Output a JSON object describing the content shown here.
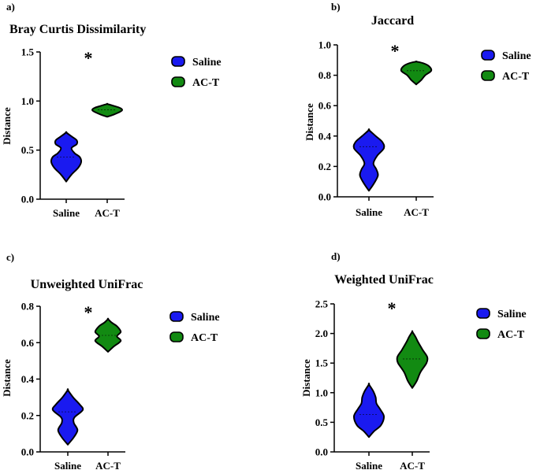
{
  "colors": {
    "saline": "#1a1af0",
    "act": "#128a12",
    "outline": "#000000"
  },
  "chart_data": [
    {
      "panel_label": "a)",
      "type": "violin",
      "title": "Bray Curtis Dissimilarity",
      "ylabel": "Distance",
      "xlabel": "",
      "categories": [
        "Saline",
        "AC-T"
      ],
      "ylim": [
        0,
        1.5
      ],
      "yticks": [
        "0.0",
        "0.5",
        "1.0",
        "1.5"
      ],
      "legend": [
        "Saline",
        "AC-T"
      ],
      "significance": "*",
      "series": [
        {
          "name": "Saline",
          "min": 0.18,
          "max": 0.68,
          "median": 0.43,
          "profile": [
            [
              0.18,
              0
            ],
            [
              0.25,
              0.35
            ],
            [
              0.32,
              0.8
            ],
            [
              0.38,
              1
            ],
            [
              0.43,
              0.9
            ],
            [
              0.47,
              0.55
            ],
            [
              0.52,
              0.35
            ],
            [
              0.56,
              0.7
            ],
            [
              0.6,
              0.7
            ],
            [
              0.64,
              0.35
            ],
            [
              0.68,
              0
            ]
          ]
        },
        {
          "name": "AC-T",
          "min": 0.84,
          "max": 0.97,
          "median": 0.91,
          "profile": [
            [
              0.84,
              0
            ],
            [
              0.86,
              0.4
            ],
            [
              0.89,
              0.85
            ],
            [
              0.91,
              1
            ],
            [
              0.93,
              0.85
            ],
            [
              0.95,
              0.45
            ],
            [
              0.97,
              0
            ]
          ]
        }
      ]
    },
    {
      "panel_label": "b)",
      "type": "violin",
      "title": "Jaccard",
      "ylabel": "Distance",
      "xlabel": "",
      "categories": [
        "Saline",
        "AC-T"
      ],
      "ylim": [
        0,
        1.0
      ],
      "yticks": [
        "0.0",
        "0.2",
        "0.4",
        "0.6",
        "0.8",
        "1.0"
      ],
      "legend": [
        "Saline",
        "AC-T"
      ],
      "significance": "*",
      "series": [
        {
          "name": "Saline",
          "min": 0.04,
          "max": 0.44,
          "median": 0.33,
          "profile": [
            [
              0.04,
              0
            ],
            [
              0.09,
              0.35
            ],
            [
              0.14,
              0.6
            ],
            [
              0.18,
              0.5
            ],
            [
              0.22,
              0.3
            ],
            [
              0.27,
              0.55
            ],
            [
              0.32,
              1
            ],
            [
              0.36,
              0.9
            ],
            [
              0.4,
              0.45
            ],
            [
              0.44,
              0
            ]
          ]
        },
        {
          "name": "AC-T",
          "min": 0.74,
          "max": 0.89,
          "median": 0.83,
          "profile": [
            [
              0.74,
              0
            ],
            [
              0.77,
              0.35
            ],
            [
              0.8,
              0.6
            ],
            [
              0.83,
              1
            ],
            [
              0.86,
              0.85
            ],
            [
              0.88,
              0.45
            ],
            [
              0.89,
              0
            ]
          ]
        }
      ]
    },
    {
      "panel_label": "c)",
      "type": "violin",
      "title": "Unweighted UniFrac",
      "ylabel": "Distance",
      "xlabel": "",
      "categories": [
        "Saline",
        "AC-T"
      ],
      "ylim": [
        0,
        0.8
      ],
      "yticks": [
        "0.0",
        "0.2",
        "0.4",
        "0.6",
        "0.8"
      ],
      "legend": [
        "Saline",
        "AC-T"
      ],
      "significance": "*",
      "series": [
        {
          "name": "Saline",
          "min": 0.04,
          "max": 0.34,
          "median": 0.22,
          "profile": [
            [
              0.04,
              0
            ],
            [
              0.08,
              0.4
            ],
            [
              0.12,
              0.65
            ],
            [
              0.16,
              0.4
            ],
            [
              0.19,
              0.45
            ],
            [
              0.23,
              1
            ],
            [
              0.26,
              0.8
            ],
            [
              0.3,
              0.35
            ],
            [
              0.34,
              0
            ]
          ]
        },
        {
          "name": "AC-T",
          "min": 0.55,
          "max": 0.73,
          "median": 0.64,
          "profile": [
            [
              0.55,
              0
            ],
            [
              0.58,
              0.4
            ],
            [
              0.61,
              0.85
            ],
            [
              0.635,
              0.6
            ],
            [
              0.66,
              0.85
            ],
            [
              0.69,
              0.6
            ],
            [
              0.71,
              0.25
            ],
            [
              0.73,
              0
            ]
          ]
        }
      ]
    },
    {
      "panel_label": "d)",
      "type": "violin",
      "title": "Weighted UniFrac",
      "ylabel": "Distance",
      "xlabel": "",
      "categories": [
        "Saline",
        "AC-T"
      ],
      "ylim": [
        0,
        2.5
      ],
      "yticks": [
        "0.0",
        "0.5",
        "1.0",
        "1.5",
        "2.0",
        "2.5"
      ],
      "legend": [
        "Saline",
        "AC-T"
      ],
      "significance": "*",
      "series": [
        {
          "name": "Saline",
          "min": 0.25,
          "max": 1.14,
          "median": 0.63,
          "profile": [
            [
              0.25,
              0
            ],
            [
              0.35,
              0.35
            ],
            [
              0.45,
              0.8
            ],
            [
              0.6,
              1
            ],
            [
              0.72,
              0.75
            ],
            [
              0.82,
              0.5
            ],
            [
              0.92,
              0.45
            ],
            [
              1.02,
              0.3
            ],
            [
              1.14,
              0
            ]
          ]
        },
        {
          "name": "AC-T",
          "min": 1.08,
          "max": 2.03,
          "median": 1.57,
          "profile": [
            [
              1.08,
              0
            ],
            [
              1.2,
              0.3
            ],
            [
              1.35,
              0.55
            ],
            [
              1.5,
              0.95
            ],
            [
              1.6,
              1
            ],
            [
              1.72,
              0.7
            ],
            [
              1.85,
              0.4
            ],
            [
              1.95,
              0.2
            ],
            [
              2.03,
              0
            ]
          ]
        }
      ]
    }
  ]
}
